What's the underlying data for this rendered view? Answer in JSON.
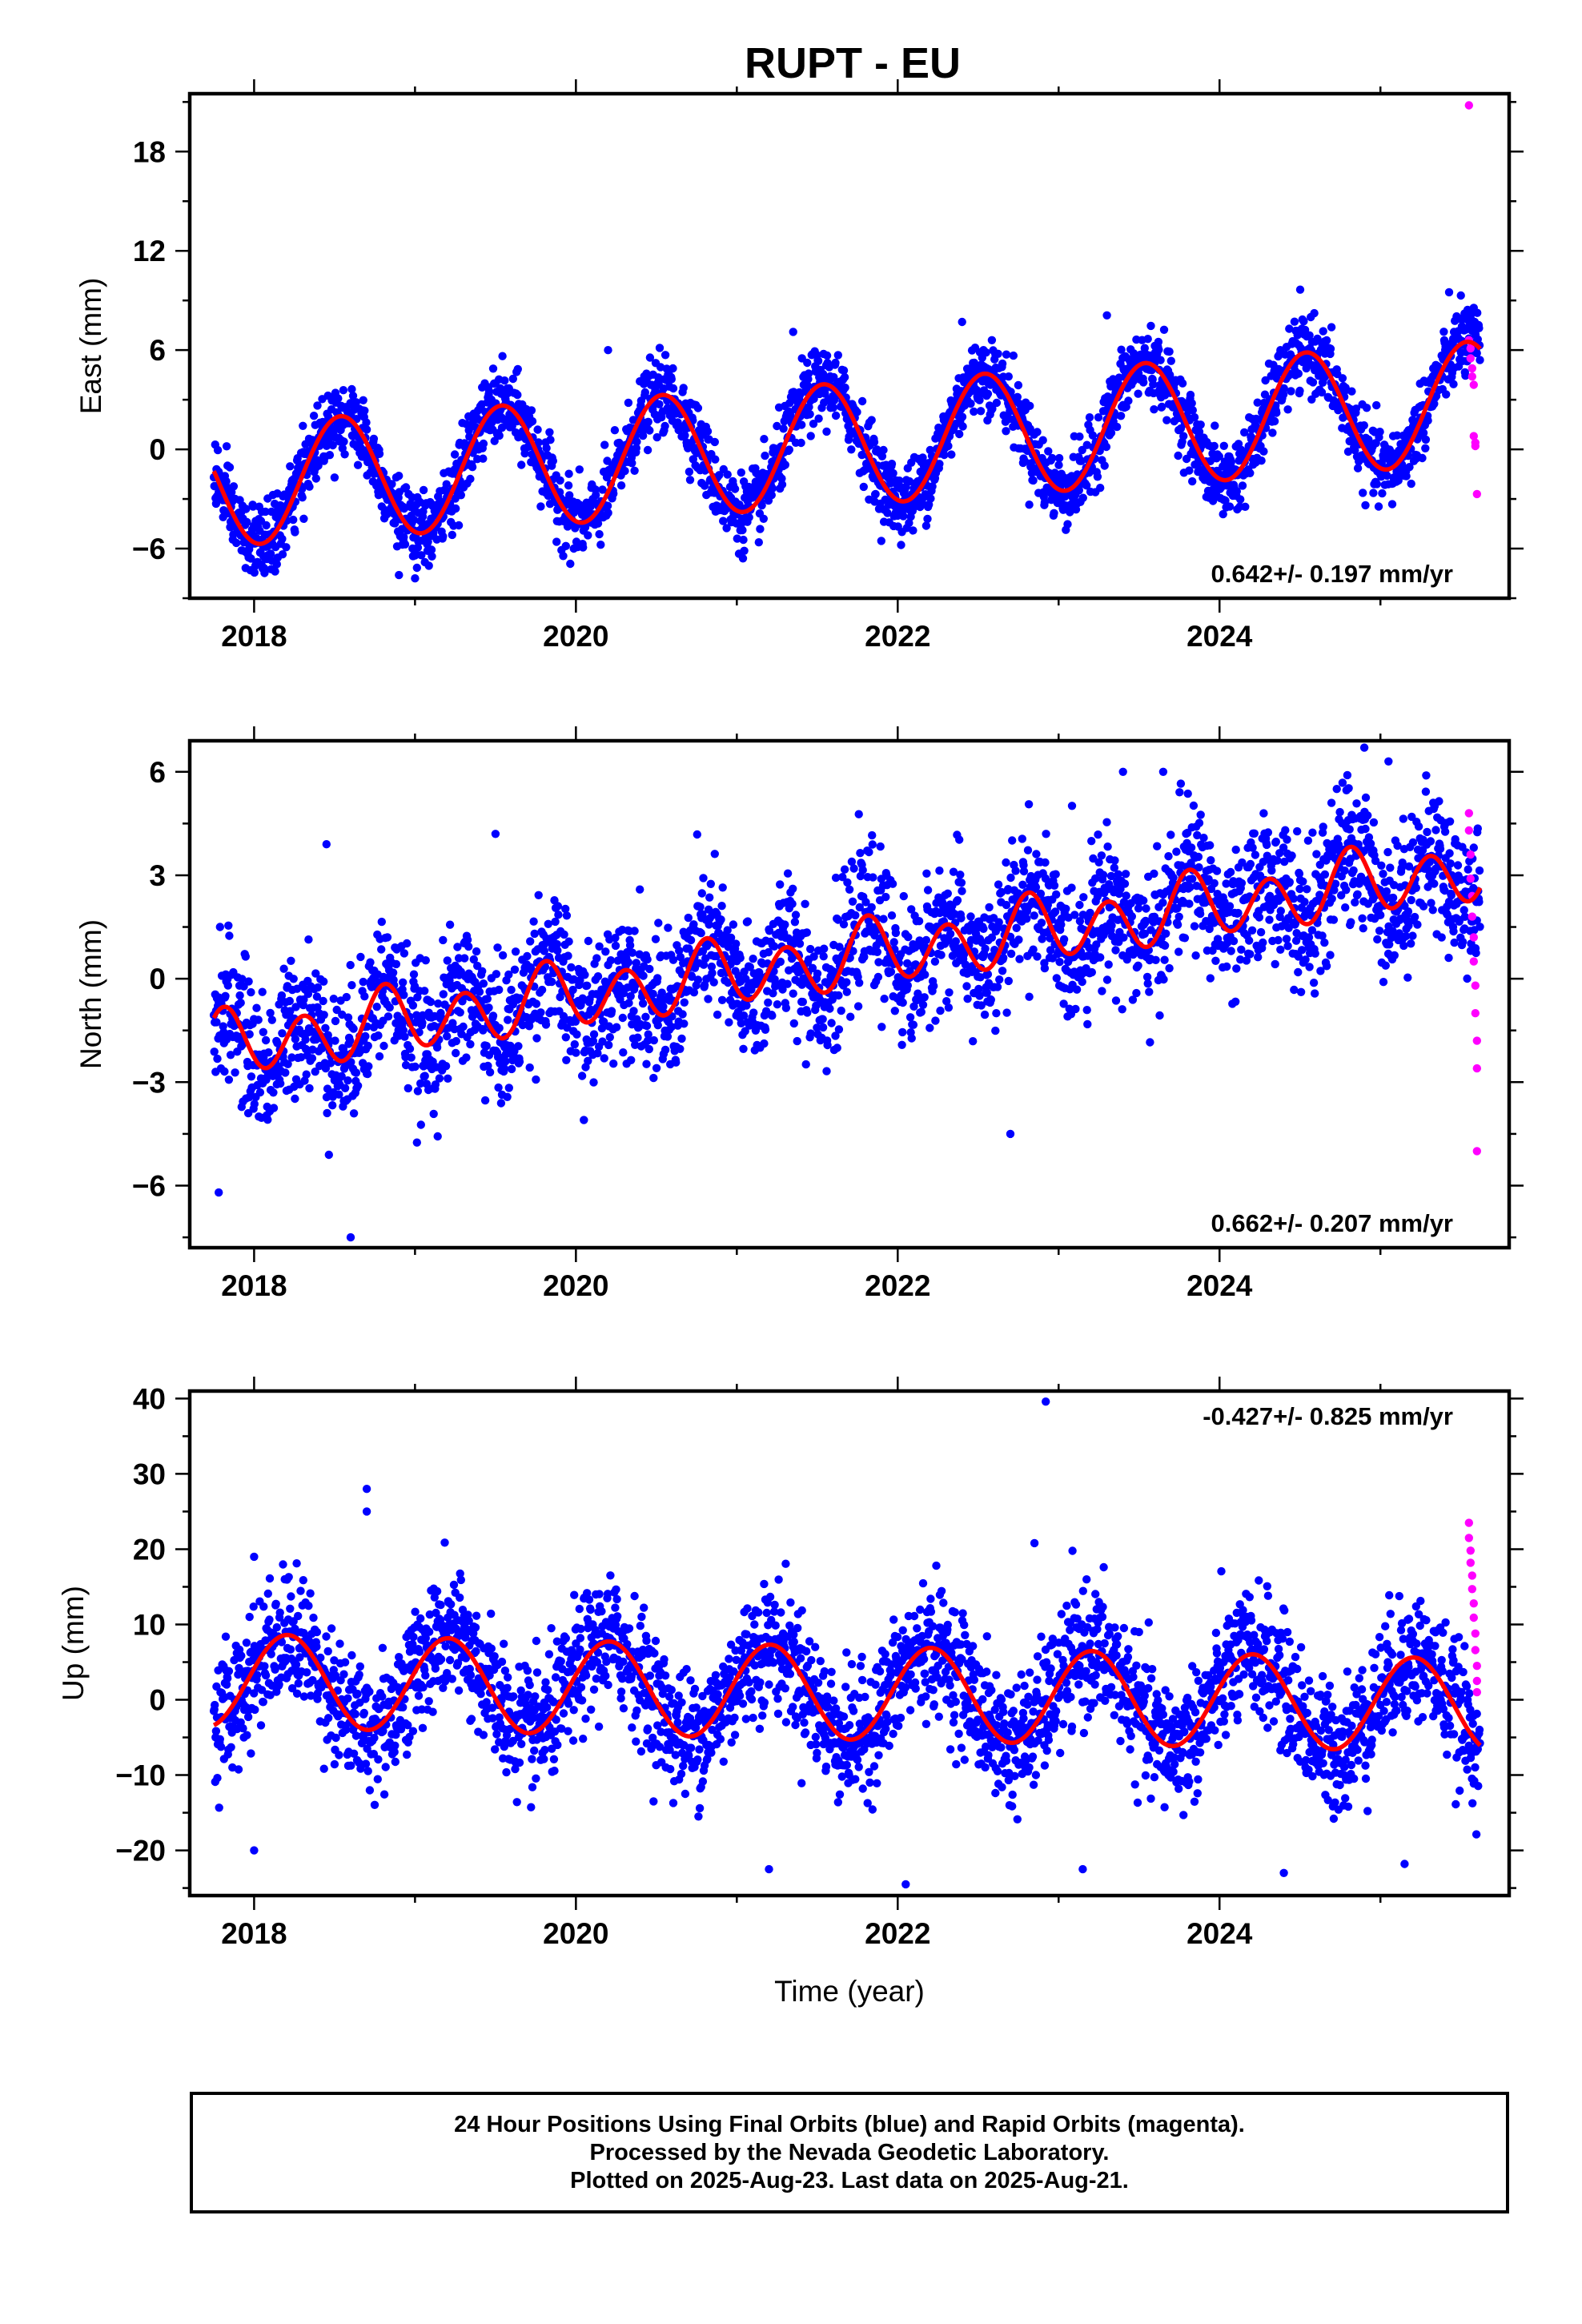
{
  "title": "RUPT - EU",
  "colors": {
    "final": "#0000ff",
    "rapid": "#ff00ff",
    "model": "#ff0000",
    "frame": "#000000"
  },
  "footer": {
    "line1": "24 Hour Positions Using Final Orbits (blue) and Rapid Orbits (magenta).",
    "line2": "Processed by the Nevada Geodetic Laboratory.",
    "line3": "Plotted on 2025-Aug-23. Last data on 2025-Aug-21."
  },
  "chart_data": [
    {
      "type": "scatter",
      "xlabel": "",
      "ylabel": "East (mm)",
      "xlim": [
        2017.6,
        2025.8
      ],
      "ylim": [
        -9,
        21.5
      ],
      "xticks": [
        2018,
        2020,
        2022,
        2024
      ],
      "yticks": [
        -6,
        0,
        6,
        12,
        18
      ],
      "rate_label": "0.642+/- 0.197 mm/yr",
      "rate_position": "bottom-right",
      "model": {
        "start": 2017.75,
        "end": 2025.62,
        "base_at_start": -2.2,
        "rate": 0.642,
        "annual_amp": 3.7,
        "annual_phase": 2.9,
        "semiannual_amp": 0.0,
        "semiannual_phase": 0.0
      },
      "scatter_noise": 1.1,
      "outliers": [
        [
          2017.78,
          -2.6
        ],
        [
          2018.9,
          -7.6
        ],
        [
          2019.0,
          -7.8
        ],
        [
          2020.2,
          6.0
        ],
        [
          2021.35,
          7.1
        ],
        [
          2022.4,
          7.7
        ],
        [
          2023.3,
          8.1
        ],
        [
          2025.5,
          9.3
        ]
      ],
      "rapid_points": [
        [
          2025.55,
          20.8
        ],
        [
          2025.55,
          6.6
        ],
        [
          2025.56,
          6.1
        ],
        [
          2025.56,
          5.5
        ],
        [
          2025.57,
          4.9
        ],
        [
          2025.57,
          4.4
        ],
        [
          2025.58,
          3.9
        ],
        [
          2025.58,
          0.8
        ],
        [
          2025.59,
          0.4
        ],
        [
          2025.59,
          0.2
        ],
        [
          2025.6,
          -2.7
        ]
      ]
    },
    {
      "type": "scatter",
      "xlabel": "",
      "ylabel": "North (mm)",
      "xlim": [
        2017.6,
        2025.8
      ],
      "ylim": [
        -7.8,
        6.9
      ],
      "xticks": [
        2018,
        2020,
        2022,
        2024
      ],
      "yticks": [
        -6,
        -3,
        0,
        3,
        6
      ],
      "rate_label": "0.662+/- 0.207 mm/yr",
      "rate_position": "bottom-right",
      "model": {
        "start": 2017.75,
        "end": 2025.62,
        "base_at_start": -2.0,
        "rate": 0.662,
        "annual_amp": 0.3,
        "annual_phase": 1.0,
        "semiannual_amp": 0.85,
        "semiannual_phase": 0.8
      },
      "scatter_noise": 1.0,
      "outliers": [
        [
          2017.78,
          -6.2
        ],
        [
          2018.45,
          3.9
        ],
        [
          2018.6,
          -7.5
        ],
        [
          2019.5,
          4.2
        ],
        [
          2023.4,
          6.0
        ],
        [
          2023.65,
          6.0
        ],
        [
          2024.9,
          6.7
        ],
        [
          2025.05,
          6.3
        ],
        [
          2022.7,
          -4.5
        ]
      ],
      "rapid_points": [
        [
          2025.55,
          4.8
        ],
        [
          2025.55,
          4.3
        ],
        [
          2025.56,
          3.6
        ],
        [
          2025.56,
          2.9
        ],
        [
          2025.57,
          2.4
        ],
        [
          2025.57,
          1.8
        ],
        [
          2025.58,
          1.2
        ],
        [
          2025.58,
          0.5
        ],
        [
          2025.59,
          -0.2
        ],
        [
          2025.59,
          -1.0
        ],
        [
          2025.6,
          -1.8
        ],
        [
          2025.6,
          -2.6
        ],
        [
          2025.6,
          -5.0
        ]
      ]
    },
    {
      "type": "scatter",
      "xlabel": "Time (year)",
      "ylabel": "Up (mm)",
      "xlim": [
        2017.6,
        2025.8
      ],
      "ylim": [
        -26,
        41
      ],
      "xticks": [
        2018,
        2020,
        2022,
        2024
      ],
      "yticks": [
        -20,
        -10,
        0,
        10,
        20,
        30,
        40
      ],
      "rate_label": "-0.427+/- 0.825 mm/yr",
      "rate_position": "top-right",
      "model": {
        "start": 2017.75,
        "end": 2025.62,
        "base_at_start": 2.6,
        "rate": -0.427,
        "annual_amp": 6.2,
        "annual_phase": -1.3,
        "semiannual_amp": 0.0,
        "semiannual_phase": 0.0
      },
      "scatter_noise": 4.2,
      "outliers": [
        [
          2018.7,
          28.0
        ],
        [
          2018.7,
          25.0
        ],
        [
          2018.0,
          19.0
        ],
        [
          2018.0,
          -20.0
        ],
        [
          2021.2,
          -22.5
        ],
        [
          2022.05,
          -24.5
        ],
        [
          2022.85,
          20.8
        ],
        [
          2023.15,
          -22.5
        ],
        [
          2024.4,
          -23.0
        ],
        [
          2025.15,
          -21.8
        ],
        [
          2022.92,
          39.6
        ]
      ],
      "rapid_points": [
        [
          2025.55,
          23.5
        ],
        [
          2025.55,
          21.5
        ],
        [
          2025.56,
          19.8
        ],
        [
          2025.56,
          18.2
        ],
        [
          2025.57,
          16.5
        ],
        [
          2025.57,
          14.7
        ],
        [
          2025.58,
          12.8
        ],
        [
          2025.58,
          10.9
        ],
        [
          2025.59,
          8.8
        ],
        [
          2025.59,
          6.6
        ],
        [
          2025.6,
          4.5
        ],
        [
          2025.6,
          2.5
        ],
        [
          2025.6,
          1.0
        ]
      ]
    }
  ]
}
